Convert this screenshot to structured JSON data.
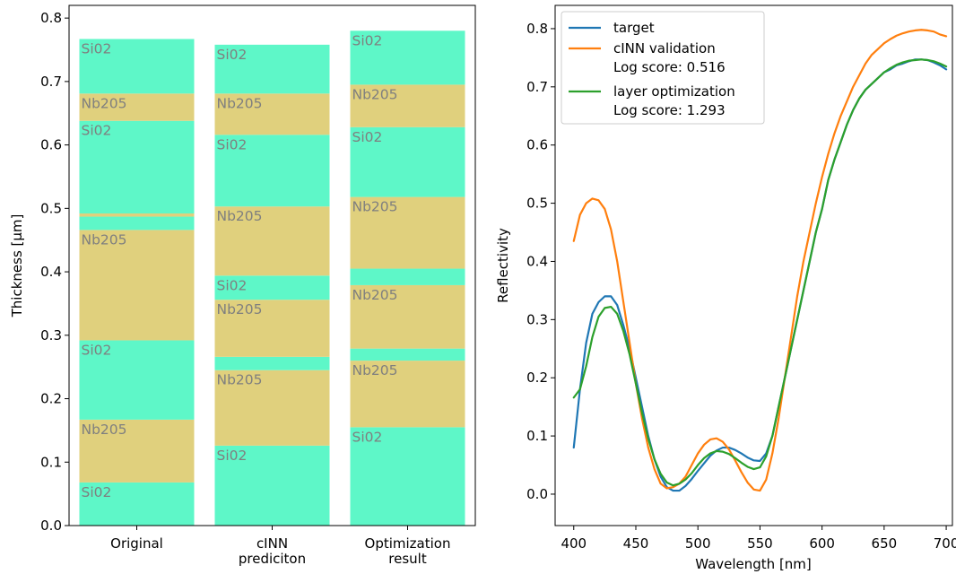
{
  "chart_data": [
    {
      "type": "bar",
      "ylabel": "Thickness [μm]",
      "ylim": [
        0,
        0.82
      ],
      "yticks": [
        "0.0",
        "0.1",
        "0.2",
        "0.3",
        "0.4",
        "0.5",
        "0.6",
        "0.7",
        "0.8"
      ],
      "materials": {
        "SiO2": {
          "label": "Si02",
          "color": "#5ef7c8"
        },
        "Nb2O5": {
          "label": "Nb205",
          "color": "#e0d07d"
        }
      },
      "categories": [
        {
          "label_lines": [
            "Original"
          ],
          "layers": [
            {
              "material": "SiO2",
              "start": 0.0,
              "end": 0.068,
              "labeled": true
            },
            {
              "material": "Nb2O5",
              "start": 0.068,
              "end": 0.167,
              "labeled": true
            },
            {
              "material": "SiO2",
              "start": 0.167,
              "end": 0.292,
              "labeled": true
            },
            {
              "material": "Nb2O5",
              "start": 0.292,
              "end": 0.466,
              "labeled": true
            },
            {
              "material": "SiO2",
              "start": 0.466,
              "end": 0.487,
              "labeled": false
            },
            {
              "material": "Nb2O5",
              "start": 0.487,
              "end": 0.492,
              "labeled": false
            },
            {
              "material": "SiO2",
              "start": 0.492,
              "end": 0.638,
              "labeled": true
            },
            {
              "material": "Nb2O5",
              "start": 0.638,
              "end": 0.681,
              "labeled": true
            },
            {
              "material": "SiO2",
              "start": 0.681,
              "end": 0.767,
              "labeled": true
            }
          ]
        },
        {
          "label_lines": [
            "cINN",
            "prediciton"
          ],
          "layers": [
            {
              "material": "SiO2",
              "start": 0.0,
              "end": 0.126,
              "labeled": true
            },
            {
              "material": "Nb2O5",
              "start": 0.126,
              "end": 0.245,
              "labeled": true
            },
            {
              "material": "SiO2",
              "start": 0.245,
              "end": 0.266,
              "labeled": false
            },
            {
              "material": "Nb2O5",
              "start": 0.266,
              "end": 0.356,
              "labeled": true
            },
            {
              "material": "SiO2",
              "start": 0.356,
              "end": 0.394,
              "labeled": true
            },
            {
              "material": "Nb2O5",
              "start": 0.394,
              "end": 0.503,
              "labeled": true
            },
            {
              "material": "SiO2",
              "start": 0.503,
              "end": 0.616,
              "labeled": true
            },
            {
              "material": "Nb2O5",
              "start": 0.616,
              "end": 0.681,
              "labeled": true
            },
            {
              "material": "SiO2",
              "start": 0.681,
              "end": 0.758,
              "labeled": true
            }
          ]
        },
        {
          "label_lines": [
            "Optimization",
            "result"
          ],
          "layers": [
            {
              "material": "SiO2",
              "start": 0.0,
              "end": 0.155,
              "labeled": true
            },
            {
              "material": "Nb2O5",
              "start": 0.155,
              "end": 0.26,
              "labeled": true
            },
            {
              "material": "SiO2",
              "start": 0.26,
              "end": 0.279,
              "labeled": false
            },
            {
              "material": "Nb2O5",
              "start": 0.279,
              "end": 0.379,
              "labeled": true
            },
            {
              "material": "SiO2",
              "start": 0.379,
              "end": 0.405,
              "labeled": false
            },
            {
              "material": "Nb2O5",
              "start": 0.405,
              "end": 0.518,
              "labeled": true
            },
            {
              "material": "SiO2",
              "start": 0.518,
              "end": 0.628,
              "labeled": true
            },
            {
              "material": "Nb2O5",
              "start": 0.628,
              "end": 0.695,
              "labeled": true
            },
            {
              "material": "SiO2",
              "start": 0.695,
              "end": 0.78,
              "labeled": true
            }
          ]
        }
      ]
    },
    {
      "type": "line",
      "xlabel": "Wavelength [nm]",
      "ylabel": "Reflectivity",
      "xlim": [
        385,
        705
      ],
      "ylim": [
        -0.054,
        0.84
      ],
      "xticks": [
        "400",
        "450",
        "500",
        "550",
        "600",
        "650",
        "700"
      ],
      "yticks": [
        "0.0",
        "0.1",
        "0.2",
        "0.3",
        "0.4",
        "0.5",
        "0.6",
        "0.7",
        "0.8"
      ],
      "legend_position": "upper-left",
      "series": [
        {
          "legend_lines": [
            "target"
          ],
          "color": "#1f77b4",
          "x": [
            400,
            405,
            410,
            415,
            420,
            425,
            430,
            435,
            440,
            445,
            450,
            455,
            460,
            465,
            470,
            475,
            480,
            485,
            490,
            495,
            500,
            505,
            510,
            515,
            520,
            525,
            530,
            535,
            540,
            545,
            550,
            555,
            560,
            565,
            570,
            575,
            580,
            585,
            590,
            595,
            600,
            605,
            610,
            615,
            620,
            625,
            630,
            635,
            640,
            645,
            650,
            655,
            660,
            665,
            670,
            675,
            680,
            685,
            690,
            695,
            700
          ],
          "y": [
            0.08,
            0.18,
            0.26,
            0.31,
            0.33,
            0.34,
            0.34,
            0.325,
            0.29,
            0.25,
            0.2,
            0.15,
            0.1,
            0.06,
            0.03,
            0.012,
            0.006,
            0.006,
            0.014,
            0.026,
            0.04,
            0.053,
            0.066,
            0.075,
            0.08,
            0.08,
            0.076,
            0.07,
            0.063,
            0.058,
            0.057,
            0.07,
            0.1,
            0.15,
            0.2,
            0.25,
            0.3,
            0.35,
            0.4,
            0.45,
            0.49,
            0.54,
            0.575,
            0.605,
            0.635,
            0.66,
            0.68,
            0.695,
            0.705,
            0.715,
            0.725,
            0.73,
            0.737,
            0.74,
            0.744,
            0.747,
            0.747,
            0.746,
            0.742,
            0.737,
            0.73
          ]
        },
        {
          "legend_lines": [
            "cINN validation",
            "Log score: 0.516"
          ],
          "color": "#ff7f0e",
          "x": [
            400,
            405,
            410,
            415,
            420,
            425,
            430,
            435,
            440,
            445,
            450,
            455,
            460,
            465,
            470,
            475,
            480,
            485,
            490,
            495,
            500,
            505,
            510,
            515,
            520,
            525,
            530,
            535,
            540,
            545,
            550,
            555,
            560,
            565,
            570,
            575,
            580,
            585,
            590,
            595,
            600,
            605,
            610,
            615,
            620,
            625,
            630,
            635,
            640,
            645,
            650,
            655,
            660,
            665,
            670,
            675,
            680,
            685,
            690,
            695,
            700
          ],
          "y": [
            0.435,
            0.48,
            0.5,
            0.508,
            0.505,
            0.49,
            0.455,
            0.4,
            0.33,
            0.26,
            0.19,
            0.13,
            0.08,
            0.043,
            0.018,
            0.01,
            0.012,
            0.018,
            0.03,
            0.05,
            0.07,
            0.085,
            0.094,
            0.096,
            0.09,
            0.077,
            0.058,
            0.038,
            0.02,
            0.008,
            0.006,
            0.025,
            0.07,
            0.13,
            0.2,
            0.27,
            0.34,
            0.4,
            0.45,
            0.5,
            0.545,
            0.585,
            0.62,
            0.65,
            0.675,
            0.7,
            0.72,
            0.74,
            0.755,
            0.765,
            0.775,
            0.782,
            0.788,
            0.792,
            0.795,
            0.797,
            0.798,
            0.797,
            0.795,
            0.79,
            0.787
          ]
        },
        {
          "legend_lines": [
            "layer optimization",
            "Log score: 1.293"
          ],
          "color": "#2ca02c",
          "x": [
            400,
            405,
            410,
            415,
            420,
            425,
            430,
            435,
            440,
            445,
            450,
            455,
            460,
            465,
            470,
            475,
            480,
            485,
            490,
            495,
            500,
            505,
            510,
            515,
            520,
            525,
            530,
            535,
            540,
            545,
            550,
            555,
            560,
            565,
            570,
            575,
            580,
            585,
            590,
            595,
            600,
            605,
            610,
            615,
            620,
            625,
            630,
            635,
            640,
            645,
            650,
            655,
            660,
            665,
            670,
            675,
            680,
            685,
            690,
            695,
            700
          ],
          "y": [
            0.166,
            0.18,
            0.22,
            0.27,
            0.305,
            0.32,
            0.322,
            0.31,
            0.28,
            0.24,
            0.19,
            0.14,
            0.095,
            0.06,
            0.035,
            0.02,
            0.015,
            0.018,
            0.025,
            0.036,
            0.05,
            0.062,
            0.07,
            0.074,
            0.073,
            0.069,
            0.062,
            0.054,
            0.047,
            0.043,
            0.046,
            0.065,
            0.1,
            0.15,
            0.2,
            0.25,
            0.3,
            0.35,
            0.4,
            0.45,
            0.49,
            0.54,
            0.575,
            0.605,
            0.635,
            0.66,
            0.68,
            0.695,
            0.705,
            0.715,
            0.725,
            0.732,
            0.738,
            0.742,
            0.745,
            0.746,
            0.747,
            0.746,
            0.744,
            0.74,
            0.735
          ]
        }
      ]
    }
  ]
}
